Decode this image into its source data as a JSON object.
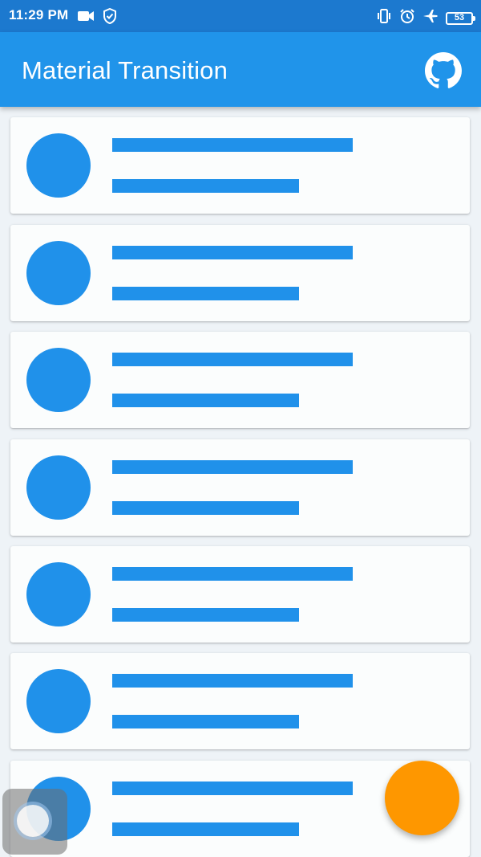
{
  "status_bar": {
    "time": "11:29 PM",
    "left_icons": [
      "video-camera-icon",
      "shield-check-icon"
    ],
    "right_icons": [
      "vibrate-icon",
      "alarm-icon",
      "airplane-icon"
    ],
    "battery_level": "53"
  },
  "app_bar": {
    "title": "Material Transition",
    "action_icon": "github-icon"
  },
  "list": {
    "item_count": 7,
    "item_template": "placeholder-card"
  },
  "fab": {
    "icon": "none"
  },
  "colors": {
    "status_bar": "#1c79cf",
    "app_bar": "#2094ea",
    "placeholder": "#2091ea",
    "fab": "#fe9700",
    "background": "#eef3f7",
    "card": "#fbfdfd"
  }
}
